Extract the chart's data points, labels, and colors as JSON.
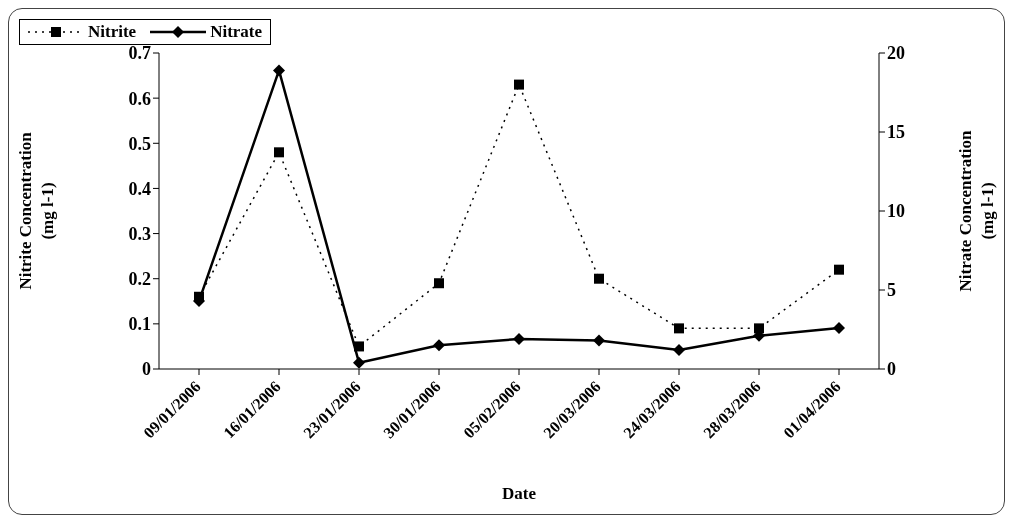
{
  "chart_data": {
    "type": "line",
    "xlabel": "Date",
    "ylabel": "Nitrite Concentration (mg l-1)",
    "y2label": "Nitrate Concentration (mg l-1)",
    "categories": [
      "09/01/2006",
      "16/01/2006",
      "23/01/2006",
      "30/01/2006",
      "05/02/2006",
      "20/03/2006",
      "24/03/2006",
      "28/03/2006",
      "01/04/2006"
    ],
    "series": [
      {
        "name": "Nitrite",
        "color": "#000000",
        "values": [
          0.16,
          0.48,
          0.05,
          0.19,
          0.63,
          0.2,
          0.09,
          0.09,
          0.22
        ],
        "marker": "square",
        "line_style": "dotted"
      },
      {
        "name": "Nitrate",
        "color": "#000000",
        "values": [
          4.3,
          18.9,
          0.4,
          1.5,
          1.9,
          1.8,
          1.2,
          2.1,
          2.6
        ],
        "axis": "y2",
        "marker": "diamond",
        "line_style": "solid"
      }
    ],
    "ylim": [
      0,
      0.7
    ],
    "yticks": [
      0,
      0.1,
      0.2,
      0.3,
      0.4,
      0.5,
      0.6,
      0.7
    ],
    "y2lim": [
      0,
      20
    ],
    "y2ticks": [
      0,
      5,
      10,
      15,
      20
    ],
    "grid": false,
    "legend": "top"
  }
}
